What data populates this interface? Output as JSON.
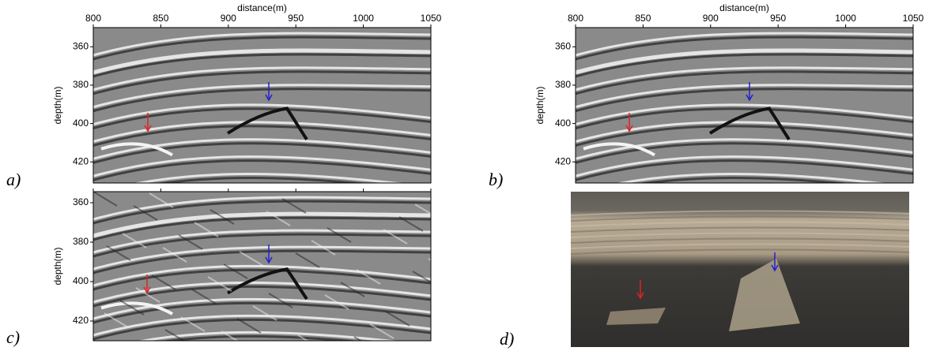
{
  "panels": [
    {
      "label": "a)",
      "xlabel": "distance(m)",
      "ylabel": "depth(m)",
      "xlim": [
        800,
        1050
      ],
      "ylim": [
        350,
        431
      ],
      "xticks": [
        800,
        850,
        900,
        950,
        1000,
        1050
      ],
      "yticks": [
        360,
        380,
        400,
        420
      ]
    },
    {
      "label": "b)",
      "xlabel": "distance(m)",
      "ylabel": "depth(m)",
      "xlim": [
        800,
        1050
      ],
      "ylim": [
        350,
        431
      ],
      "xticks": [
        800,
        850,
        900,
        950,
        1000,
        1050
      ],
      "yticks": [
        360,
        380,
        400,
        420
      ]
    },
    {
      "label": "c)",
      "ylabel": "depth(m)",
      "xlim": [
        800,
        1050
      ],
      "ylim": [
        354.4,
        430
      ],
      "xticks": [
        800,
        850,
        900,
        950,
        1000,
        1050
      ],
      "yticks": [
        360,
        380,
        400,
        420
      ],
      "xtick_labels": false
    },
    {
      "label": "d)"
    }
  ]
}
